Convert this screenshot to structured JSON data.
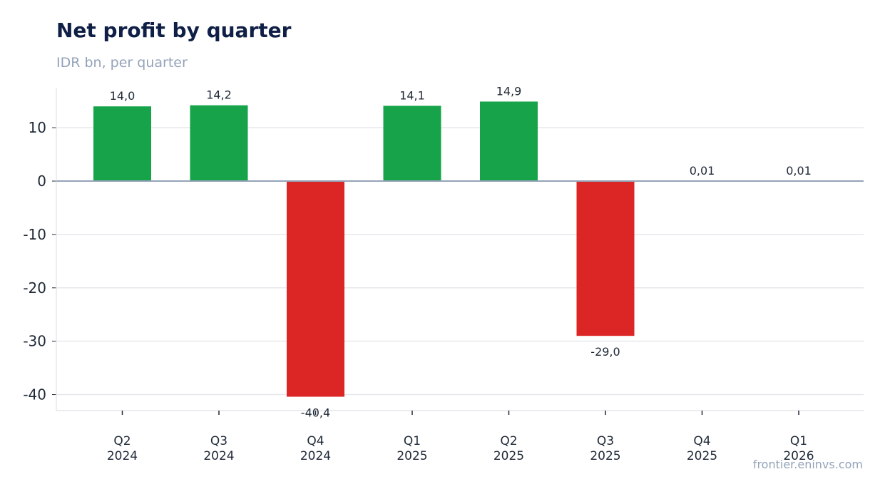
{
  "header": {
    "title": "Net profit by quarter",
    "subtitle": "IDR bn, per quarter"
  },
  "footer": {
    "credit": "frontier.eninvs.com"
  },
  "chart_data": {
    "type": "bar",
    "title": "Net profit by quarter",
    "subtitle": "IDR bn, per quarter",
    "categories": [
      [
        "Q2",
        "2024"
      ],
      [
        "Q3",
        "2024"
      ],
      [
        "Q4",
        "2024"
      ],
      [
        "Q1",
        "2025"
      ],
      [
        "Q2",
        "2025"
      ],
      [
        "Q3",
        "2025"
      ],
      [
        "Q4",
        "2025"
      ],
      [
        "Q1",
        "2026"
      ]
    ],
    "values": [
      14.0,
      14.2,
      -40.4,
      14.1,
      14.9,
      -29.0,
      0.01,
      0.01
    ],
    "value_labels": [
      "14,0",
      "14,2",
      "-40,4",
      "14,1",
      "14,9",
      "-29,0",
      "0,01",
      "0,01"
    ],
    "yticks": [
      10,
      0,
      -10,
      -20,
      -30,
      -40
    ],
    "ylim": [
      -43,
      17.5
    ],
    "grid": true,
    "colors": {
      "positive": "#16a34a",
      "negative": "#dc2626",
      "grid": "#e5e7eb",
      "zero_line": "#94a3b8"
    }
  }
}
